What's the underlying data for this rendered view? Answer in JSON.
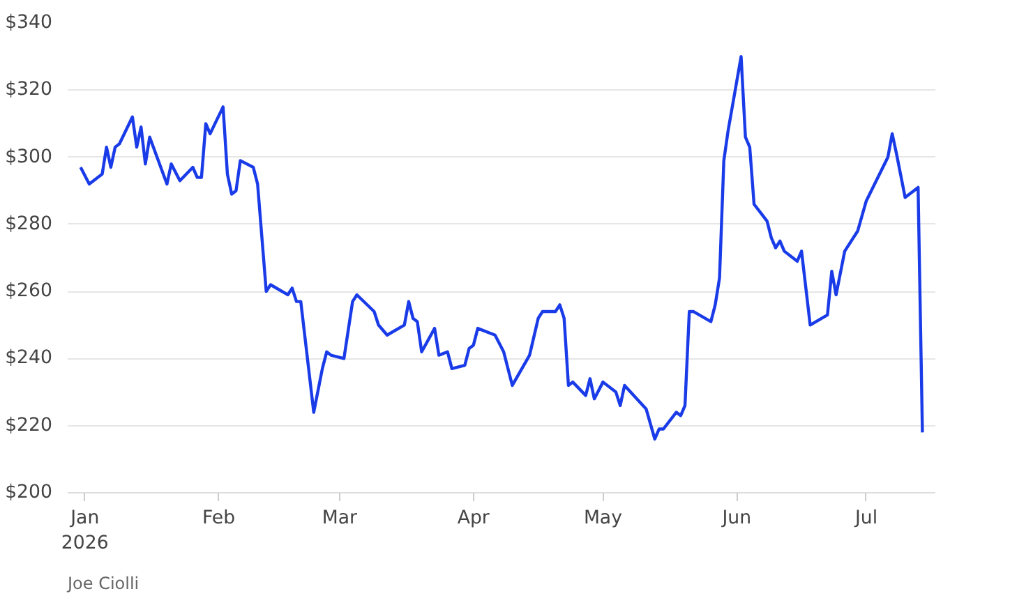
{
  "chart_data": {
    "type": "line",
    "x": [
      "2025-12-31",
      "2026-01-02",
      "2026-01-05",
      "2026-01-06",
      "2026-01-07",
      "2026-01-08",
      "2026-01-09",
      "2026-01-12",
      "2026-01-13",
      "2026-01-14",
      "2026-01-15",
      "2026-01-16",
      "2026-01-20",
      "2026-01-21",
      "2026-01-23",
      "2026-01-26",
      "2026-01-27",
      "2026-01-28",
      "2026-01-29",
      "2026-01-30",
      "2026-02-02",
      "2026-02-03",
      "2026-02-04",
      "2026-02-05",
      "2026-02-06",
      "2026-02-09",
      "2026-02-10",
      "2026-02-12",
      "2026-02-13",
      "2026-02-17",
      "2026-02-18",
      "2026-02-19",
      "2026-02-20",
      "2026-02-23",
      "2026-02-25",
      "2026-02-26",
      "2026-02-27",
      "2026-03-02",
      "2026-03-04",
      "2026-03-05",
      "2026-03-09",
      "2026-03-10",
      "2026-03-12",
      "2026-03-16",
      "2026-03-17",
      "2026-03-18",
      "2026-03-19",
      "2026-03-20",
      "2026-03-23",
      "2026-03-24",
      "2026-03-26",
      "2026-03-27",
      "2026-03-30",
      "2026-03-31",
      "2026-04-01",
      "2026-04-02",
      "2026-04-06",
      "2026-04-08",
      "2026-04-10",
      "2026-04-14",
      "2026-04-16",
      "2026-04-17",
      "2026-04-20",
      "2026-04-21",
      "2026-04-22",
      "2026-04-23",
      "2026-04-24",
      "2026-04-27",
      "2026-04-28",
      "2026-04-29",
      "2026-05-01",
      "2026-05-04",
      "2026-05-05",
      "2026-05-06",
      "2026-05-11",
      "2026-05-13",
      "2026-05-14",
      "2026-05-15",
      "2026-05-18",
      "2026-05-19",
      "2026-05-20",
      "2026-05-21",
      "2026-05-22",
      "2026-05-26",
      "2026-05-27",
      "2026-05-28",
      "2026-05-29",
      "2026-05-30",
      "2026-06-02",
      "2026-06-03",
      "2026-06-04",
      "2026-06-05",
      "2026-06-08",
      "2026-06-09",
      "2026-06-10",
      "2026-06-11",
      "2026-06-12",
      "2026-06-15",
      "2026-06-16",
      "2026-06-18",
      "2026-06-22",
      "2026-06-23",
      "2026-06-24",
      "2026-06-26",
      "2026-06-29",
      "2026-07-01",
      "2026-07-06",
      "2026-07-07",
      "2026-07-08",
      "2026-07-10",
      "2026-07-13",
      "2026-07-14"
    ],
    "series": [
      {
        "color": "#1a3be8",
        "values": [
          297,
          292,
          295,
          303,
          297,
          303,
          304,
          312,
          303,
          309,
          298,
          306,
          292,
          298,
          293,
          297,
          294,
          294,
          310,
          307,
          315,
          295,
          289,
          290,
          299,
          297,
          292,
          260,
          262,
          259,
          261,
          257,
          257,
          224,
          237,
          242,
          241,
          240,
          257,
          259,
          254,
          250,
          247,
          250,
          257,
          252,
          251,
          242,
          249,
          241,
          242,
          237,
          238,
          243,
          244,
          249,
          247,
          242,
          232,
          241,
          252,
          254,
          254,
          256,
          252,
          232,
          233,
          229,
          234,
          228,
          233,
          230,
          226,
          232,
          225,
          216,
          219,
          219,
          224,
          223,
          226,
          254,
          254,
          251,
          256,
          264,
          299,
          308,
          330,
          306,
          303,
          286,
          281,
          276,
          273,
          275,
          272,
          269,
          272,
          250,
          253,
          266,
          259,
          272,
          278,
          287,
          300,
          307,
          301,
          288,
          291,
          218
        ]
      }
    ],
    "xlim": [
      "2025-12-28",
      "2026-07-17"
    ],
    "xticks": [
      {
        "value": "2026-01-01",
        "label": "Jan\n2026"
      },
      {
        "value": "2026-02-01",
        "label": "Feb"
      },
      {
        "value": "2026-03-01",
        "label": "Mar"
      },
      {
        "value": "2026-04-01",
        "label": "Apr"
      },
      {
        "value": "2026-05-01",
        "label": "May"
      },
      {
        "value": "2026-06-01",
        "label": "Jun"
      },
      {
        "value": "2026-07-01",
        "label": "Jul"
      }
    ],
    "ylim": [
      200,
      340
    ],
    "yticks": [
      {
        "value": 200,
        "label": "$200"
      },
      {
        "value": 220,
        "label": "$220"
      },
      {
        "value": 240,
        "label": "$240"
      },
      {
        "value": 260,
        "label": "$260"
      },
      {
        "value": 280,
        "label": "$280"
      },
      {
        "value": 300,
        "label": "$300"
      },
      {
        "value": 320,
        "label": "$320"
      },
      {
        "value": 340,
        "label": "$340"
      }
    ],
    "grid": "y",
    "marker": "none",
    "line_style": "solid",
    "annotations": [
      "Joe Ciolli"
    ]
  }
}
